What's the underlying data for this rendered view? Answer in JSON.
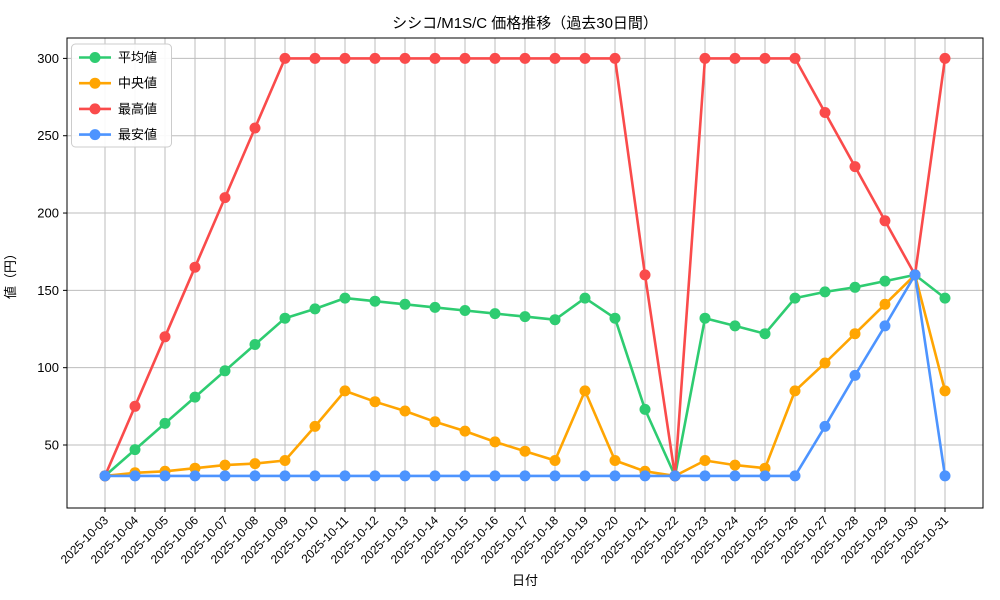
{
  "title": "シシコ/M1S/C 価格推移（過去30日間）",
  "chart_data": {
    "type": "line",
    "title": "シシコ/M1S/C 価格推移（過去30日間）",
    "xlabel": "日付",
    "ylabel": "値（円）",
    "x": [
      "2025-10-03",
      "2025-10-04",
      "2025-10-05",
      "2025-10-06",
      "2025-10-07",
      "2025-10-08",
      "2025-10-09",
      "2025-10-10",
      "2025-10-11",
      "2025-10-12",
      "2025-10-13",
      "2025-10-14",
      "2025-10-15",
      "2025-10-16",
      "2025-10-17",
      "2025-10-18",
      "2025-10-19",
      "2025-10-20",
      "2025-10-21",
      "2025-10-22",
      "2025-10-23",
      "2025-10-24",
      "2025-10-25",
      "2025-10-26",
      "2025-10-27",
      "2025-10-28",
      "2025-10-29",
      "2025-10-30",
      "2025-10-31"
    ],
    "series": [
      {
        "name": "平均値",
        "color": "#2ECC71",
        "values": [
          30,
          47,
          64,
          81,
          98,
          115,
          132,
          138,
          145,
          143,
          141,
          139,
          137,
          135,
          133,
          131,
          145,
          132,
          73,
          30,
          132,
          127,
          122,
          145,
          149,
          152,
          156,
          160,
          145
        ]
      },
      {
        "name": "中央値",
        "color": "#FFA502",
        "values": [
          30,
          32,
          33,
          35,
          37,
          38,
          40,
          62,
          85,
          78,
          72,
          65,
          59,
          52,
          46,
          40,
          85,
          40,
          33,
          30,
          40,
          37,
          35,
          85,
          103,
          122,
          141,
          160,
          85
        ]
      },
      {
        "name": "最高値",
        "color": "#FA4B4B",
        "values": [
          30,
          75,
          120,
          165,
          210,
          255,
          300,
          300,
          300,
          300,
          300,
          300,
          300,
          300,
          300,
          300,
          300,
          300,
          160,
          30,
          300,
          300,
          300,
          300,
          265,
          230,
          195,
          160,
          300
        ]
      },
      {
        "name": "最安値",
        "color": "#4D94FF",
        "values": [
          30,
          30,
          30,
          30,
          30,
          30,
          30,
          30,
          30,
          30,
          30,
          30,
          30,
          30,
          30,
          30,
          30,
          30,
          30,
          30,
          30,
          30,
          30,
          30,
          62,
          95,
          127,
          160,
          30
        ]
      }
    ],
    "yticks": [
      50,
      100,
      150,
      200,
      250,
      300
    ],
    "ylim": [
      9,
      313
    ],
    "grid": true,
    "grid_color": "#BDBDBD",
    "legend_position": "upper left",
    "x_tick_rotation": 45,
    "marker": "circle"
  }
}
